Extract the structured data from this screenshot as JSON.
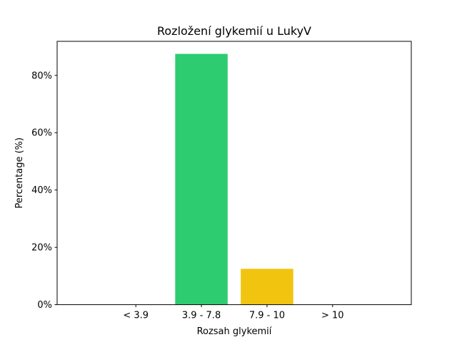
{
  "chart_data": {
    "type": "bar",
    "title": "Rozložení glykemií u  LukyV",
    "xlabel": "Rozsah glykemií",
    "ylabel": "Percentage (%)",
    "categories": [
      "< 3.9",
      "3.9 - 7.8",
      "7.9 - 10",
      "> 10"
    ],
    "values": [
      0,
      87.5,
      12.5,
      0
    ],
    "colors": [
      "#e74c3c",
      "#2ecc71",
      "#f1c40f",
      "#e67e22"
    ],
    "ylim": [
      0,
      91.875
    ],
    "yticks": [
      0,
      20,
      40,
      60,
      80
    ],
    "ytick_labels": [
      "0%",
      "20%",
      "40%",
      "60%",
      "80%"
    ],
    "grid": false,
    "legend": "none"
  }
}
